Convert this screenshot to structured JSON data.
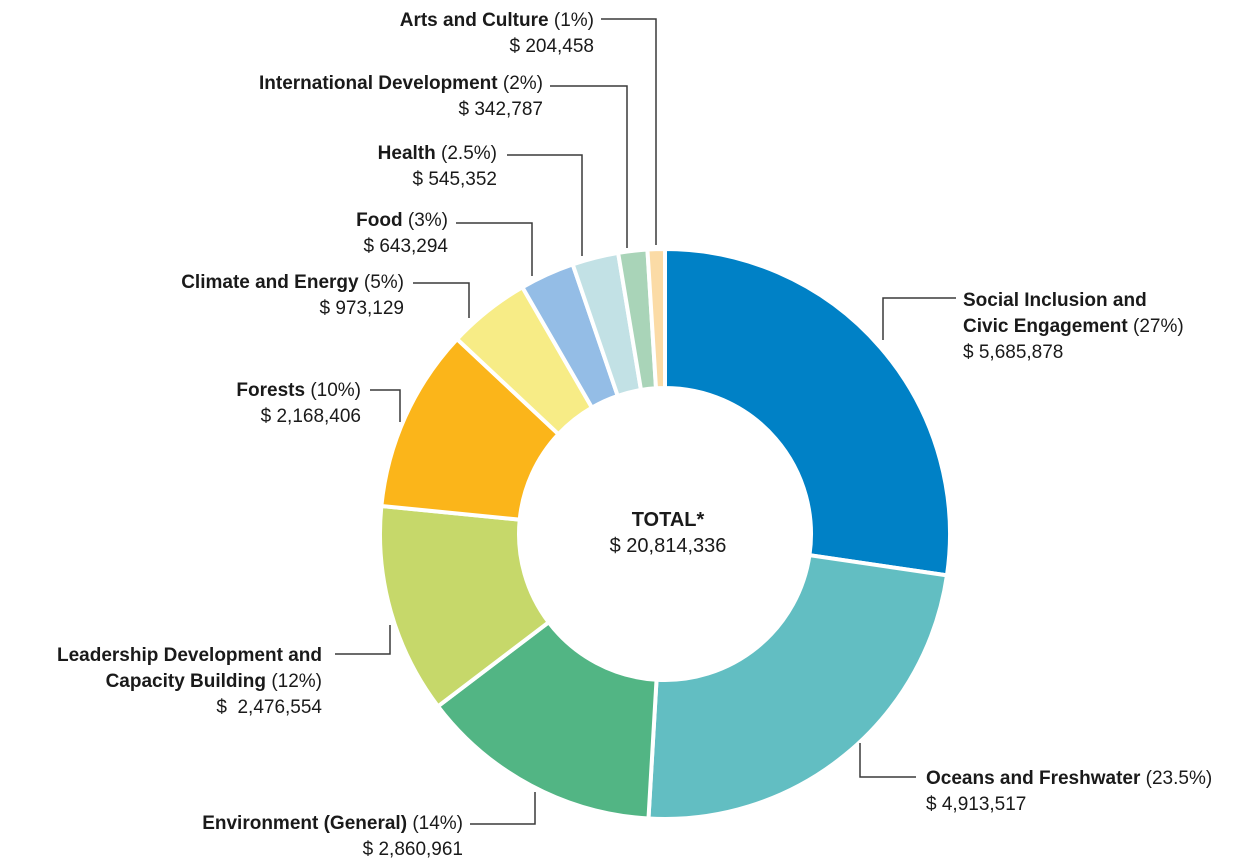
{
  "chart_data": {
    "type": "pie",
    "center_label": {
      "title": "TOTAL*",
      "value": "$ 20,814,336"
    },
    "slices": [
      {
        "name": "Social Inclusion and Civic Engagement",
        "name_line1": "Social Inclusion and",
        "name_line2": "Civic Engagement",
        "percent_label": "(27%)",
        "percent": 27,
        "amount_label": "$ 5,685,878",
        "amount": 5685878,
        "color": "#0081c6"
      },
      {
        "name": "Oceans and Freshwater",
        "percent_label": "(23.5%)",
        "percent": 23.5,
        "amount_label": "$ 4,913,517",
        "amount": 4913517,
        "color": "#62bec2"
      },
      {
        "name": "Environment (General)",
        "percent_label": "(14%)",
        "percent": 14,
        "amount_label": "$ 2,860,961",
        "amount": 2860961,
        "color": "#52b584"
      },
      {
        "name": "Leadership Development and Capacity Building",
        "name_line1": "Leadership Development and",
        "name_line2": "Capacity Building",
        "percent_label": "(12%)",
        "percent": 12,
        "amount_label": "$  2,476,554",
        "amount": 2476554,
        "color": "#c6d86a"
      },
      {
        "name": "Forests",
        "percent_label": "(10%)",
        "percent": 10,
        "amount_label": "$ 2,168,406",
        "amount": 2168406,
        "color": "#fbb51a"
      },
      {
        "name": "Climate and Energy",
        "percent_label": "(5%)",
        "percent": 5,
        "amount_label": "$ 973,129",
        "amount": 973129,
        "color": "#f7ec86"
      },
      {
        "name": "Food",
        "percent_label": "(3%)",
        "percent": 3,
        "amount_label": "$ 643,294",
        "amount": 643294,
        "color": "#94bde6"
      },
      {
        "name": "Health",
        "percent_label": "(2.5%)",
        "percent": 2.5,
        "amount_label": "$ 545,352",
        "amount": 545352,
        "color": "#c2e1e5"
      },
      {
        "name": "International Development",
        "percent_label": "(2%)",
        "percent": 2,
        "amount_label": "$ 342,787",
        "amount": 342787,
        "color": "#a9d4b8"
      },
      {
        "name": "Arts and Culture",
        "percent_label": "(1%)",
        "percent": 1,
        "amount_label": "$ 204,458",
        "amount": 204458,
        "color": "#fbdba6"
      }
    ]
  }
}
